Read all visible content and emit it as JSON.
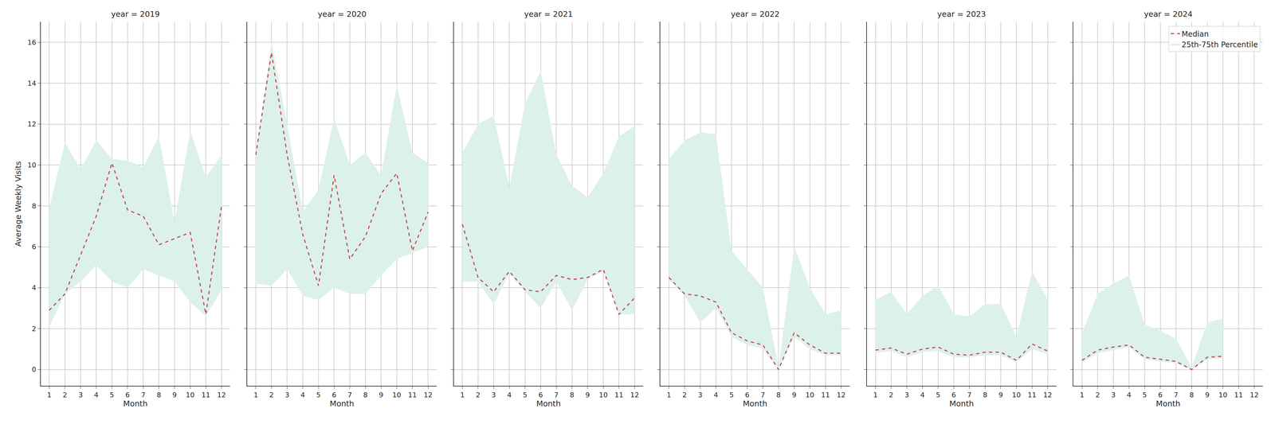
{
  "chart_data": [
    {
      "type": "line",
      "title": "year = 2019",
      "xlabel": "Month",
      "ylabel": "Average Weekly Visits",
      "x": [
        1,
        2,
        3,
        4,
        5,
        6,
        7,
        8,
        9,
        10,
        11,
        12
      ],
      "xlim": [
        0.45,
        12.55
      ],
      "xticks": [
        1,
        2,
        3,
        4,
        5,
        6,
        7,
        8,
        9,
        10,
        11,
        12
      ],
      "ylim": [
        -0.8,
        17
      ],
      "yticks": [
        0,
        2,
        4,
        6,
        8,
        10,
        12,
        14,
        16
      ],
      "grid": true,
      "series": [
        {
          "name": "25th-75th Percentile",
          "type": "band",
          "color": "#dcf1ea",
          "lower": [
            2.1,
            3.7,
            4.3,
            5.1,
            4.3,
            4.0,
            4.9,
            4.6,
            4.3,
            3.3,
            2.6,
            3.9
          ],
          "upper": [
            7.9,
            11.1,
            9.8,
            11.2,
            10.3,
            10.2,
            9.9,
            11.4,
            7.2,
            11.7,
            9.4,
            10.5
          ]
        },
        {
          "name": "Median",
          "type": "line",
          "color": "#c44e52",
          "line_style": "dashed",
          "values": [
            2.9,
            3.7,
            5.6,
            7.5,
            10.1,
            7.8,
            7.5,
            6.1,
            6.4,
            6.7,
            2.7,
            8.0
          ]
        }
      ]
    },
    {
      "type": "line",
      "title": "year = 2020",
      "xlabel": "Month",
      "x": [
        1,
        2,
        3,
        4,
        5,
        6,
        7,
        8,
        9,
        10,
        11,
        12
      ],
      "xlim": [
        0.45,
        12.55
      ],
      "xticks": [
        1,
        2,
        3,
        4,
        5,
        6,
        7,
        8,
        9,
        10,
        11,
        12
      ],
      "ylim": [
        -0.8,
        17
      ],
      "yticks": [
        0,
        2,
        4,
        6,
        8,
        10,
        12,
        14,
        16
      ],
      "grid": true,
      "tick_labels": "x",
      "series": [
        {
          "name": "25th-75th Percentile",
          "type": "band",
          "color": "#dcf1ea",
          "lower": [
            4.2,
            4.1,
            4.9,
            3.6,
            3.4,
            4.0,
            3.7,
            3.7,
            4.6,
            5.4,
            5.7,
            6.0
          ],
          "upper": [
            10.5,
            16.0,
            12.0,
            7.7,
            8.8,
            12.3,
            10.0,
            10.6,
            9.5,
            13.9,
            10.6,
            10.1
          ]
        },
        {
          "name": "Median",
          "type": "line",
          "color": "#c44e52",
          "line_style": "dashed",
          "values": [
            10.5,
            15.5,
            10.5,
            6.6,
            4.1,
            9.5,
            5.4,
            6.5,
            8.6,
            9.6,
            5.8,
            7.7
          ]
        }
      ]
    },
    {
      "type": "line",
      "title": "year = 2021",
      "xlabel": "Month",
      "x": [
        1,
        2,
        3,
        4,
        5,
        6,
        7,
        8,
        9,
        10,
        11,
        12
      ],
      "xlim": [
        0.45,
        12.55
      ],
      "xticks": [
        1,
        2,
        3,
        4,
        5,
        6,
        7,
        8,
        9,
        10,
        11,
        12
      ],
      "ylim": [
        -0.8,
        17
      ],
      "yticks": [
        0,
        2,
        4,
        6,
        8,
        10,
        12,
        14,
        16
      ],
      "grid": true,
      "tick_labels": "x",
      "series": [
        {
          "name": "25th-75th Percentile",
          "type": "band",
          "color": "#dcf1ea",
          "lower": [
            4.3,
            4.3,
            3.2,
            4.7,
            3.8,
            3.0,
            4.3,
            2.9,
            4.4,
            4.8,
            2.7,
            2.7
          ],
          "upper": [
            10.6,
            12.0,
            12.4,
            8.9,
            13.0,
            14.6,
            10.5,
            9.0,
            8.4,
            9.6,
            11.4,
            11.9
          ]
        },
        {
          "name": "Median",
          "type": "line",
          "color": "#c44e52",
          "line_style": "dashed",
          "values": [
            7.1,
            4.5,
            3.8,
            4.8,
            3.9,
            3.8,
            4.6,
            4.4,
            4.5,
            4.9,
            2.7,
            3.5
          ]
        }
      ]
    },
    {
      "type": "line",
      "title": "year = 2022",
      "xlabel": "Month",
      "x": [
        1,
        2,
        3,
        4,
        5,
        6,
        7,
        8,
        9,
        10,
        11,
        12
      ],
      "xlim": [
        0.45,
        12.55
      ],
      "xticks": [
        1,
        2,
        3,
        4,
        5,
        6,
        7,
        8,
        9,
        10,
        11,
        12
      ],
      "ylim": [
        -0.8,
        17
      ],
      "yticks": [
        0,
        2,
        4,
        6,
        8,
        10,
        12,
        14,
        16
      ],
      "grid": true,
      "tick_labels": "x",
      "series": [
        {
          "name": "25th-75th Percentile",
          "type": "band",
          "color": "#dcf1ea",
          "lower": [
            4.4,
            3.6,
            2.3,
            3.0,
            1.6,
            1.2,
            1.0,
            0.0,
            1.6,
            1.0,
            0.7,
            0.7
          ],
          "upper": [
            10.3,
            11.2,
            11.6,
            11.5,
            5.8,
            4.9,
            4.0,
            0.1,
            6.0,
            4.0,
            2.7,
            2.9
          ]
        },
        {
          "name": "Median",
          "type": "line",
          "color": "#c44e52",
          "line_style": "dashed",
          "values": [
            4.5,
            3.7,
            3.6,
            3.3,
            1.8,
            1.4,
            1.2,
            0.0,
            1.8,
            1.2,
            0.8,
            0.8
          ]
        }
      ]
    },
    {
      "type": "line",
      "title": "year = 2023",
      "xlabel": "Month",
      "x": [
        1,
        2,
        3,
        4,
        5,
        6,
        7,
        8,
        9,
        10,
        11,
        12
      ],
      "xlim": [
        0.45,
        12.55
      ],
      "xticks": [
        1,
        2,
        3,
        4,
        5,
        6,
        7,
        8,
        9,
        10,
        11,
        12
      ],
      "ylim": [
        -0.8,
        17
      ],
      "yticks": [
        0,
        2,
        4,
        6,
        8,
        10,
        12,
        14,
        16
      ],
      "grid": true,
      "tick_labels": "x",
      "series": [
        {
          "name": "25th-75th Percentile",
          "type": "band",
          "color": "#dcf1ea",
          "lower": [
            0.8,
            0.9,
            0.6,
            0.85,
            0.9,
            0.6,
            0.6,
            0.7,
            0.7,
            0.35,
            1.0,
            0.75
          ],
          "upper": [
            3.4,
            3.8,
            2.7,
            3.6,
            4.1,
            2.7,
            2.6,
            3.2,
            3.2,
            1.6,
            4.8,
            3.4
          ]
        },
        {
          "name": "Median",
          "type": "line",
          "color": "#c44e52",
          "line_style": "dashed",
          "values": [
            0.95,
            1.05,
            0.75,
            1.0,
            1.1,
            0.75,
            0.7,
            0.85,
            0.85,
            0.45,
            1.25,
            0.9
          ]
        }
      ]
    },
    {
      "type": "line",
      "title": "year = 2024",
      "xlabel": "Month",
      "x": [
        1,
        2,
        3,
        4,
        5,
        6,
        7,
        8,
        9,
        10
      ],
      "xlim": [
        0.45,
        12.55
      ],
      "xticks": [
        1,
        2,
        3,
        4,
        5,
        6,
        7,
        8,
        9,
        10,
        11,
        12
      ],
      "ylim": [
        -0.8,
        17
      ],
      "yticks": [
        0,
        2,
        4,
        6,
        8,
        10,
        12,
        14,
        16
      ],
      "grid": true,
      "tick_labels": "x",
      "legend": "upper right",
      "series": [
        {
          "name": "25th-75th Percentile",
          "type": "band",
          "color": "#dcf1ea",
          "lower": [
            0.35,
            0.8,
            0.95,
            1.1,
            0.5,
            0.4,
            0.3,
            0.0,
            0.5,
            0.55
          ],
          "upper": [
            1.8,
            3.7,
            4.2,
            4.6,
            2.2,
            1.9,
            1.5,
            0.1,
            2.3,
            2.5
          ]
        },
        {
          "name": "Median",
          "type": "line",
          "color": "#c44e52",
          "line_style": "dashed",
          "values": [
            0.45,
            0.95,
            1.1,
            1.2,
            0.6,
            0.5,
            0.4,
            0.0,
            0.6,
            0.65
          ]
        }
      ]
    }
  ]
}
